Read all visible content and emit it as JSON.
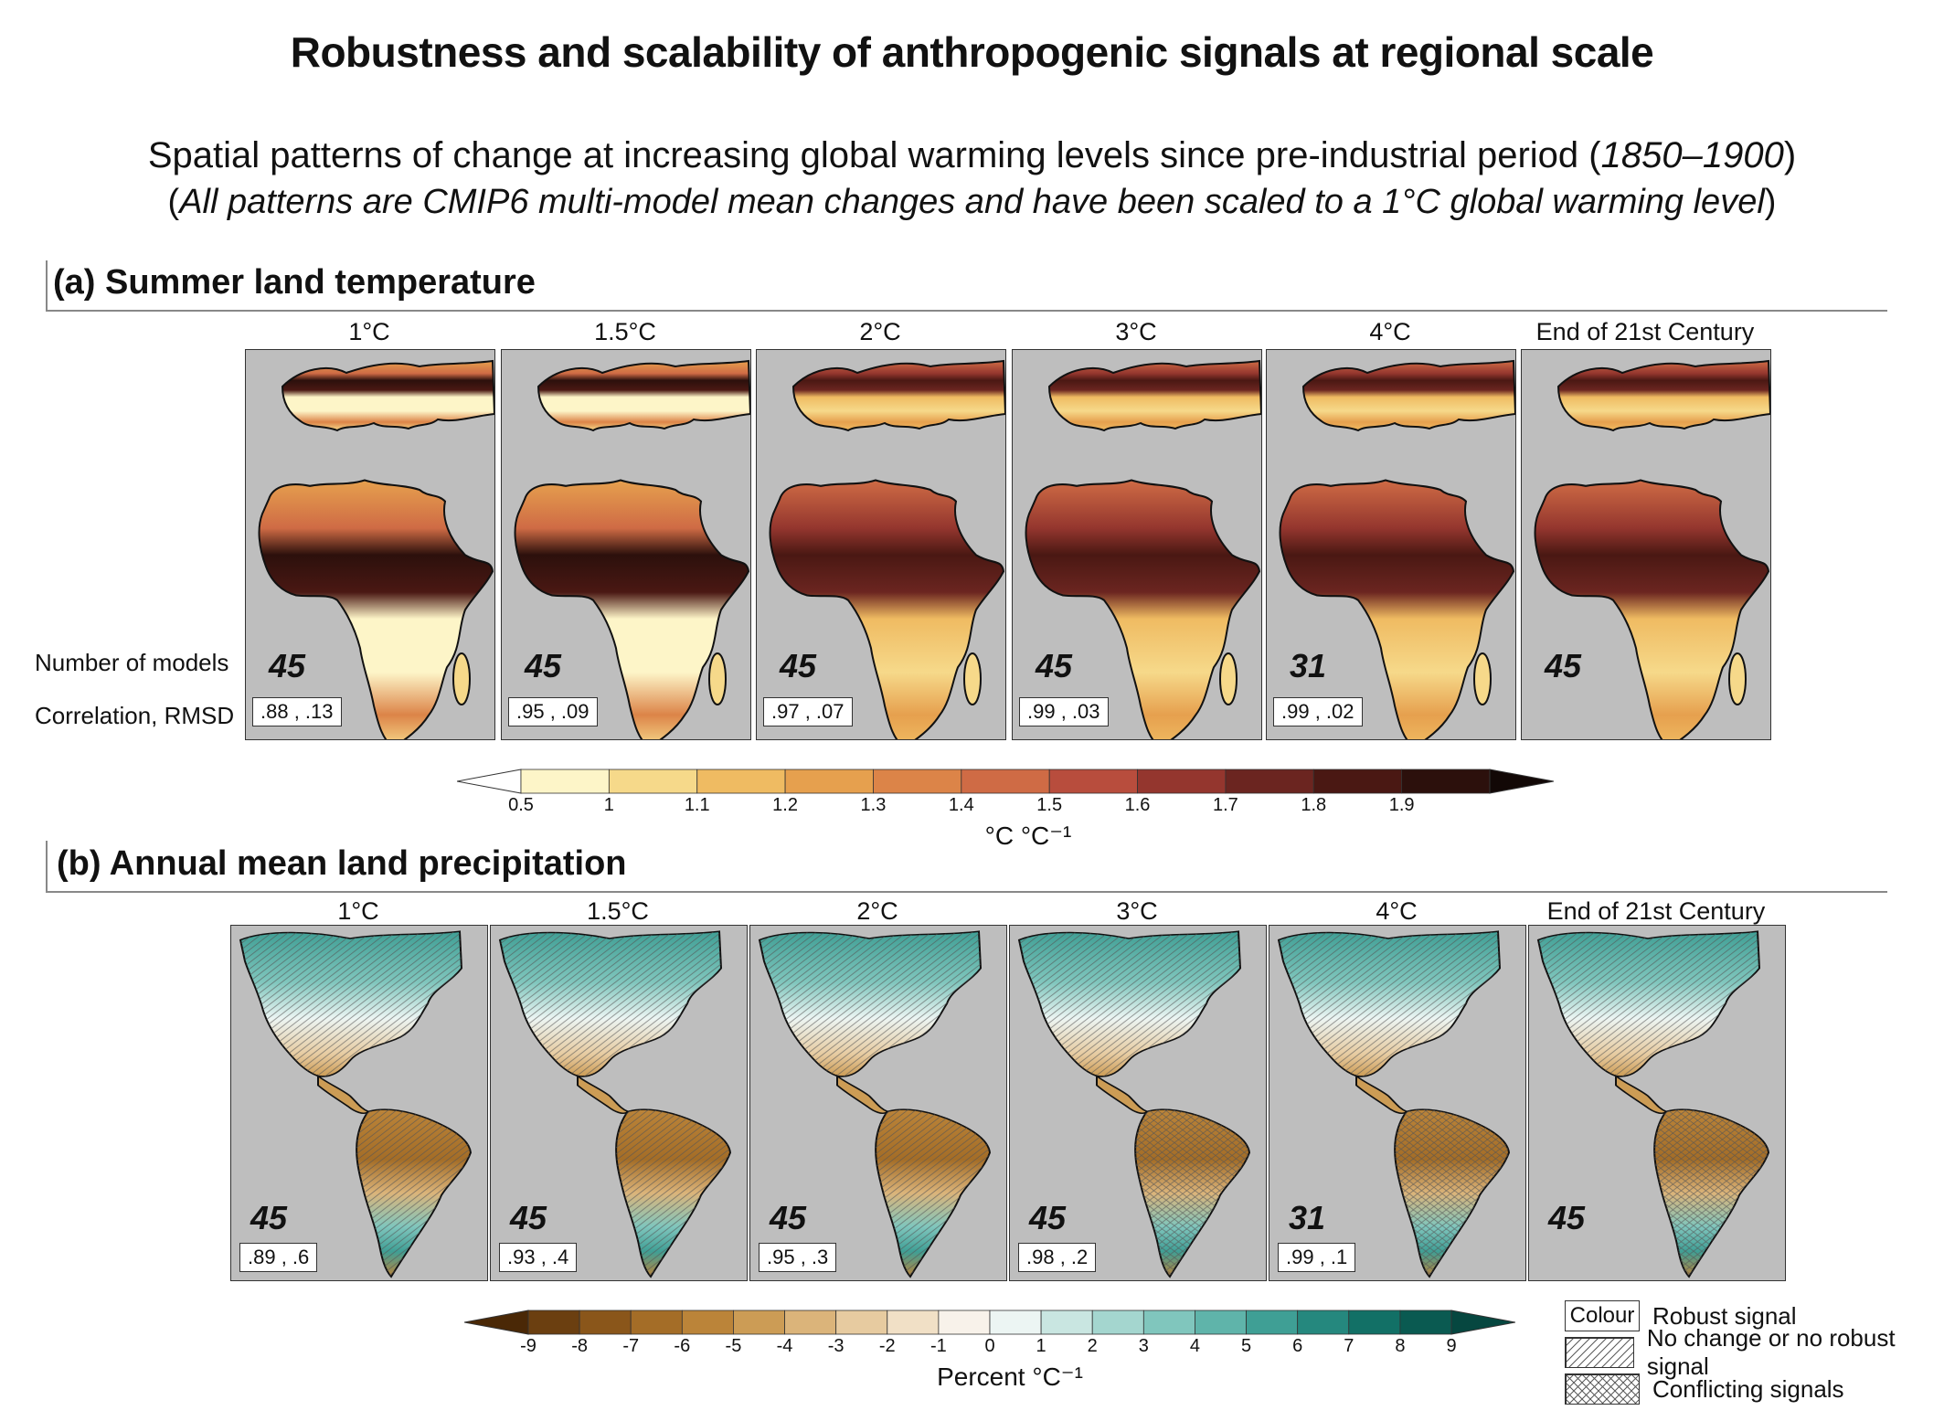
{
  "title": "Robustness and scalability of anthropogenic signals at regional scale",
  "subtitle_main": "Spatial patterns of change at increasing global warming levels since pre-industrial period (",
  "subtitle_period": "1850–1900",
  "subtitle_close": ")",
  "subtitle2_open": "(",
  "subtitle2_italic": "All patterns are CMIP6 multi-model mean changes and have been scaled to a 1°C global warming level",
  "subtitle2_close": ")",
  "row_labels": {
    "models": "Number of models",
    "correlation": "Correlation, RMSD"
  },
  "panel_a": {
    "title": "(a) Summer land temperature",
    "maps": [
      {
        "label": "1°C",
        "models": "45",
        "stat": ".88 , .13"
      },
      {
        "label": "1.5°C",
        "models": "45",
        "stat": ".95 , .09"
      },
      {
        "label": "2°C",
        "models": "45",
        "stat": ".97 , .07"
      },
      {
        "label": "3°C",
        "models": "45",
        "stat": ".99 , .03"
      },
      {
        "label": "4°C",
        "models": "31",
        "stat": ".99 , .02"
      },
      {
        "label": "End of 21st Century",
        "models": "45",
        "stat": ""
      }
    ],
    "colorbar": {
      "ticks": [
        "0.5",
        "1",
        "1.1",
        "1.2",
        "1.3",
        "1.4",
        "1.5",
        "1.6",
        "1.7",
        "1.8",
        "1.9"
      ],
      "unit": "°C °C⁻¹",
      "colors": [
        "#ffffff",
        "#fdf5c8",
        "#f6d98a",
        "#efbb62",
        "#e6a04e",
        "#dc8448",
        "#cf6b45",
        "#b84d3d",
        "#94362e",
        "#6b2520",
        "#4a1813",
        "#2c100c",
        "#120806"
      ]
    }
  },
  "panel_b": {
    "title": "(b) Annual mean land precipitation",
    "maps": [
      {
        "label": "1°C",
        "models": "45",
        "stat": ".89 , .6"
      },
      {
        "label": "1.5°C",
        "models": "45",
        "stat": ".93 , .4"
      },
      {
        "label": "2°C",
        "models": "45",
        "stat": ".95 , .3"
      },
      {
        "label": "3°C",
        "models": "45",
        "stat": ".98 , .2"
      },
      {
        "label": "4°C",
        "models": "31",
        "stat": ".99 , .1"
      },
      {
        "label": "End of 21st Century",
        "models": "45",
        "stat": ""
      }
    ],
    "colorbar": {
      "ticks": [
        "-9",
        "-8",
        "-7",
        "-6",
        "-5",
        "-4",
        "-3",
        "-2",
        "-1",
        "0",
        "1",
        "2",
        "3",
        "4",
        "5",
        "6",
        "7",
        "8",
        "9"
      ],
      "unit": "Percent °C⁻¹",
      "colors": [
        "#4a2806",
        "#6b3f10",
        "#8a561a",
        "#a46d27",
        "#bb8439",
        "#cc9c55",
        "#dbb47a",
        "#e7cba0",
        "#f1e0c6",
        "#f8f2ea",
        "#ecf5f3",
        "#c9e6e1",
        "#a4d6cf",
        "#80c6bd",
        "#5fb4aa",
        "#3f9f95",
        "#25887e",
        "#127066",
        "#0a5a51",
        "#064740"
      ]
    },
    "legend": [
      {
        "swatch": "Colour",
        "text": "Robust signal"
      },
      {
        "swatch": "",
        "text": "No change or no robust signal"
      },
      {
        "swatch": "",
        "text": "Conflicting signals"
      }
    ]
  },
  "chart_data": [
    {
      "type": "heatmap",
      "title": "(a) Summer land temperature",
      "panels": [
        "1°C",
        "1.5°C",
        "2°C",
        "3°C",
        "4°C",
        "End of 21st Century"
      ],
      "number_of_models": [
        45,
        45,
        45,
        45,
        31,
        45
      ],
      "correlation": [
        0.88,
        0.95,
        0.97,
        0.99,
        0.99,
        null
      ],
      "rmsd": [
        0.13,
        0.09,
        0.07,
        0.03,
        0.02,
        null
      ],
      "colorbar_levels": [
        0.5,
        1,
        1.1,
        1.2,
        1.3,
        1.4,
        1.5,
        1.6,
        1.7,
        1.8,
        1.9
      ],
      "unit": "°C °C⁻¹"
    },
    {
      "type": "heatmap",
      "title": "(b) Annual mean land precipitation",
      "panels": [
        "1°C",
        "1.5°C",
        "2°C",
        "3°C",
        "4°C",
        "End of 21st Century"
      ],
      "number_of_models": [
        45,
        45,
        45,
        45,
        31,
        45
      ],
      "correlation": [
        0.89,
        0.93,
        0.95,
        0.98,
        0.99,
        null
      ],
      "rmsd": [
        0.6,
        0.4,
        0.3,
        0.2,
        0.1,
        null
      ],
      "colorbar_levels": [
        -9,
        -8,
        -7,
        -6,
        -5,
        -4,
        -3,
        -2,
        -1,
        0,
        1,
        2,
        3,
        4,
        5,
        6,
        7,
        8,
        9
      ],
      "unit": "Percent °C⁻¹"
    }
  ]
}
